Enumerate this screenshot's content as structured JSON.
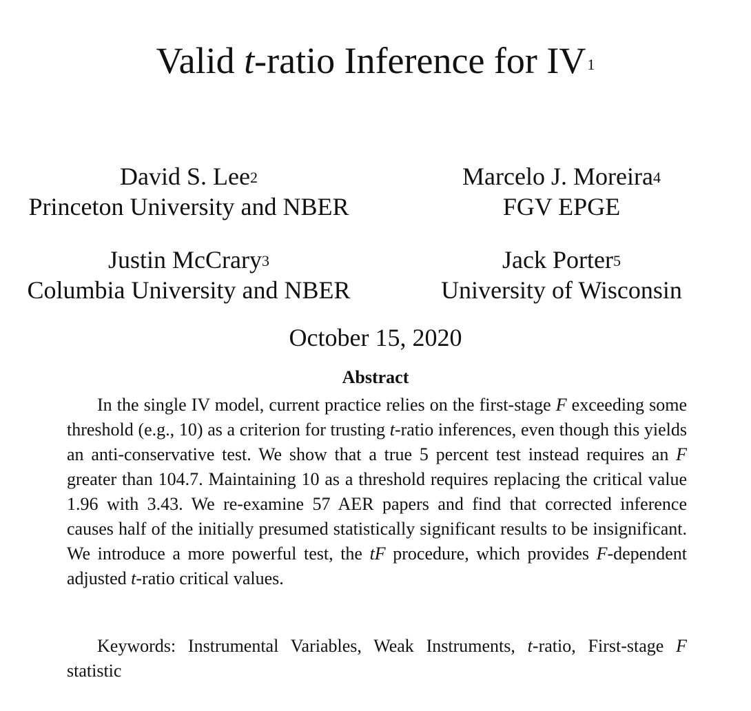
{
  "paper": {
    "title": {
      "prefix": "Valid ",
      "italic": "t",
      "suffix": "-ratio Inference for IV",
      "footnote": "1"
    },
    "authors": [
      {
        "name": "David S. Lee",
        "footnote": "2",
        "affiliation": "Princeton University and NBER"
      },
      {
        "name": "Marcelo J. Moreira",
        "footnote": "4",
        "affiliation": "FGV EPGE"
      },
      {
        "name": "Justin McCrary",
        "footnote": "3",
        "affiliation": "Columbia University and NBER"
      },
      {
        "name": "Jack Porter",
        "footnote": "5",
        "affiliation": "University of Wisconsin"
      }
    ],
    "date": "October 15, 2020",
    "abstract_heading": "Abstract",
    "abstract_segments": [
      {
        "text": "In the single IV model, current practice relies on the first-stage ",
        "italic": false
      },
      {
        "text": "F",
        "italic": true
      },
      {
        "text": " exceeding some threshold (e.g., 10) as a criterion for trusting ",
        "italic": false
      },
      {
        "text": "t",
        "italic": true
      },
      {
        "text": "-ratio inferences, even though this yields an anti-conservative test.  We show that a true 5 percent test instead requires an ",
        "italic": false
      },
      {
        "text": "F",
        "italic": true
      },
      {
        "text": " greater than 104.7. Maintaining 10 as a threshold requires replacing the critical value 1.96 with 3.43.  We re-examine 57 AER papers and find that corrected inference causes half of the initially presumed statistically significant results to be insignificant. We introduce a more powerful test, the ",
        "italic": false
      },
      {
        "text": "tF",
        "italic": true
      },
      {
        "text": " procedure, which provides ",
        "italic": false
      },
      {
        "text": "F",
        "italic": true
      },
      {
        "text": "-dependent adjusted ",
        "italic": false
      },
      {
        "text": "t",
        "italic": true
      },
      {
        "text": "-ratio critical values.",
        "italic": false
      }
    ],
    "keywords_segments": [
      {
        "text": "Keywords: Instrumental Variables, Weak Instruments, ",
        "italic": false
      },
      {
        "text": "t",
        "italic": true
      },
      {
        "text": "-ratio, First-stage ",
        "italic": false
      },
      {
        "text": "F",
        "italic": true
      },
      {
        "text": " statistic",
        "italic": false
      }
    ]
  }
}
